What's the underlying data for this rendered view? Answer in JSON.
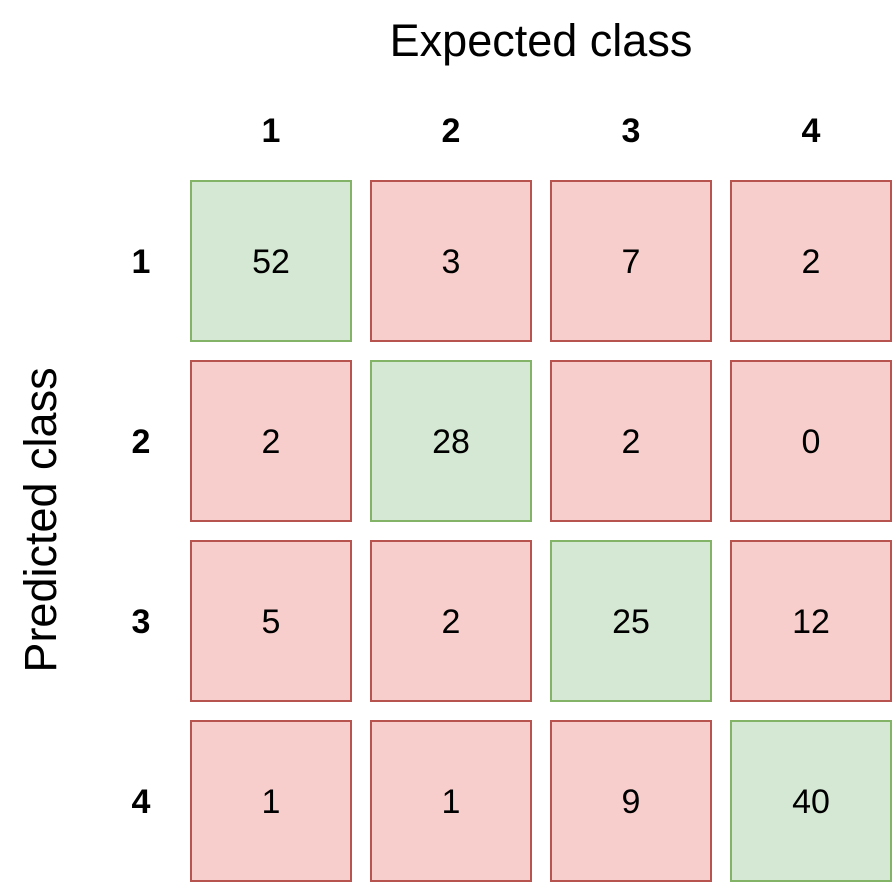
{
  "chart_data": {
    "type": "heatmap",
    "title": "",
    "xlabel": "Expected class",
    "ylabel": "Predicted class",
    "x_categories": [
      "1",
      "2",
      "3",
      "4"
    ],
    "y_categories": [
      "1",
      "2",
      "3",
      "4"
    ],
    "matrix": [
      [
        52,
        3,
        7,
        2
      ],
      [
        2,
        28,
        2,
        0
      ],
      [
        5,
        2,
        25,
        12
      ],
      [
        1,
        1,
        9,
        40
      ]
    ],
    "colors": {
      "correct_fill": "#d5e8d4",
      "correct_stroke": "#82b366",
      "incorrect_fill": "#f8cecc",
      "incorrect_stroke": "#b85450"
    }
  }
}
